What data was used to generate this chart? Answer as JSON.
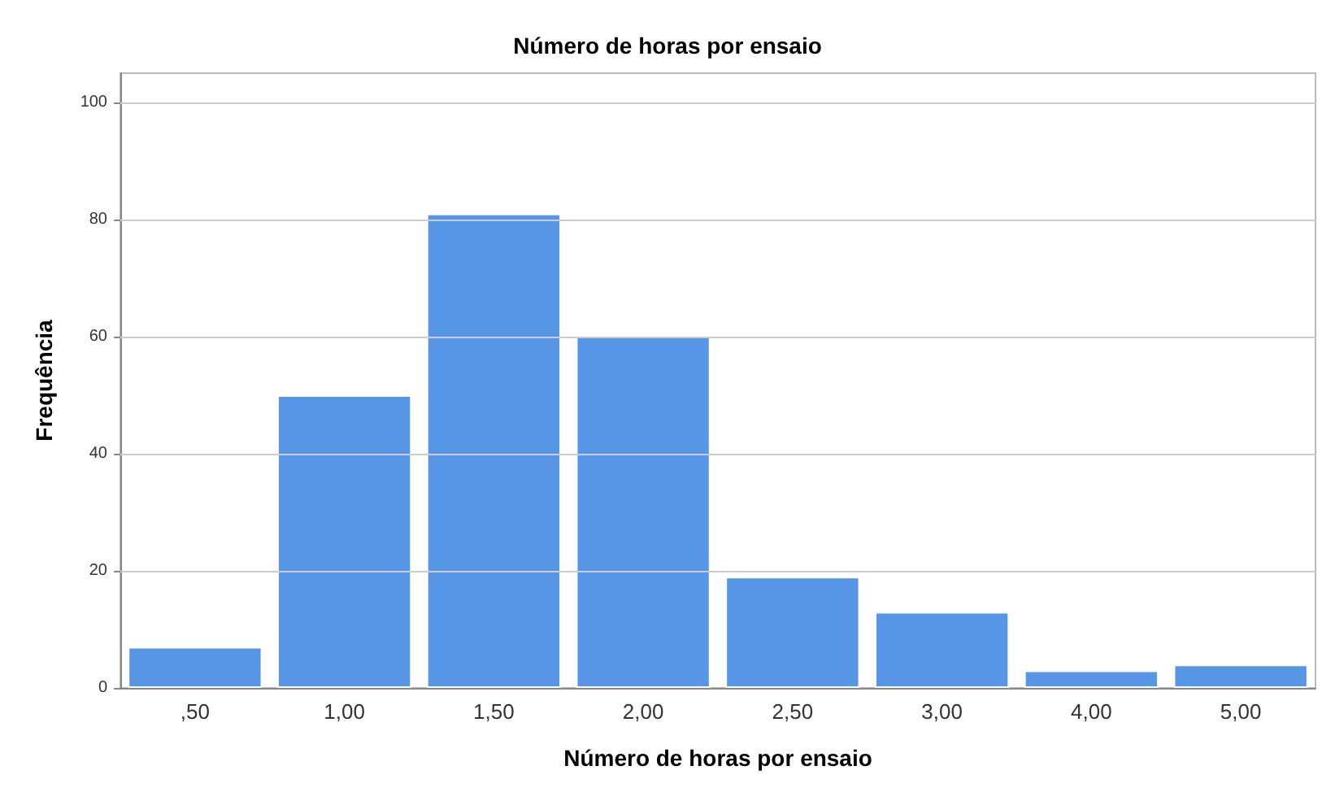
{
  "chart_data": {
    "type": "bar",
    "title": "Número de horas por ensaio",
    "xlabel": "Número de horas por ensaio",
    "ylabel": "Frequência",
    "categories": [
      ",50",
      "1,00",
      "1,50",
      "2,00",
      "2,50",
      "3,00",
      "4,00",
      "5,00"
    ],
    "values": [
      7,
      50,
      81,
      60,
      19,
      13,
      3,
      4
    ],
    "color": "#5795e6",
    "ylim": [
      0,
      105
    ],
    "yticks": [
      0,
      20,
      40,
      60,
      80,
      100
    ],
    "grid": "y"
  }
}
